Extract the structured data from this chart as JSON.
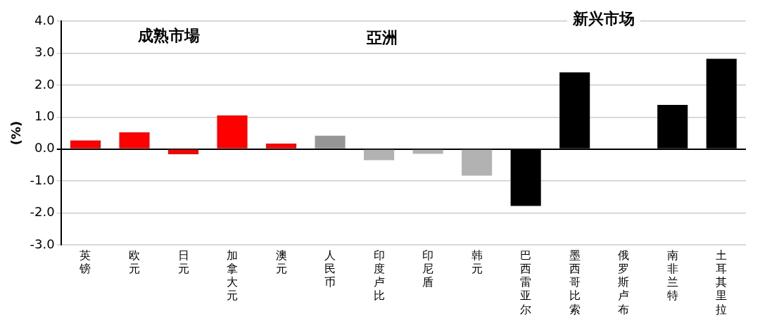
{
  "chart_data": {
    "type": "bar",
    "ylabel": "(%)",
    "categories": [
      "英镑",
      "欧元",
      "日元",
      "加拿大元",
      "澳元",
      "人民币",
      "印度卢比",
      "印尼盾",
      "韩元",
      "巴西雷亚尔",
      "墨西哥比索",
      "俄罗斯卢布",
      "南非兰特",
      "土耳其里拉"
    ],
    "values": [
      0.27,
      0.52,
      -0.16,
      1.05,
      0.17,
      0.42,
      -0.35,
      -0.15,
      -0.83,
      -1.78,
      2.4,
      0,
      1.38,
      2.82
    ],
    "colors": [
      "#ff0000",
      "#ff0000",
      "#ff0000",
      "#ff0000",
      "#ff0000",
      "#969696",
      "#b2b2b2",
      "#b2b2b2",
      "#b2b2b2",
      "#000000",
      "#000000",
      "#000000",
      "#000000",
      "#000000"
    ],
    "ylim": [
      -3,
      4
    ],
    "yticks": [
      {
        "value": -3,
        "label": "-3.0"
      },
      {
        "value": -2,
        "label": "-2.0"
      },
      {
        "value": -1,
        "label": "-1.0"
      },
      {
        "value": 0,
        "label": "0.0"
      },
      {
        "value": 1,
        "label": "1.0"
      },
      {
        "value": 2,
        "label": "2.0"
      },
      {
        "value": 3,
        "label": "3.0"
      },
      {
        "value": 4,
        "label": "4.0"
      }
    ],
    "grid": "y",
    "annotations": [
      "成熟市場",
      "亞洲",
      "新兴市场"
    ]
  }
}
